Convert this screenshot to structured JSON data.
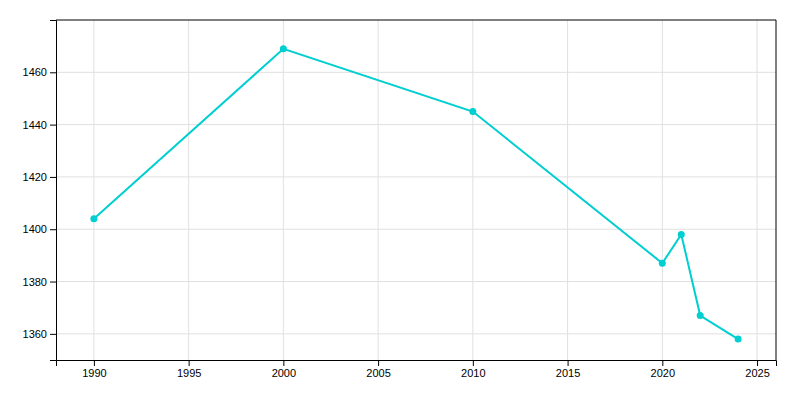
{
  "chart_data": {
    "type": "line",
    "x": [
      1990,
      2000,
      2010,
      2020,
      2021,
      2022,
      2024
    ],
    "values": [
      1404,
      1469,
      1445,
      1387,
      1398,
      1367,
      1358
    ],
    "color": "#00CED1",
    "marker": "circle",
    "xlim": [
      1988,
      2026
    ],
    "ylim": [
      1350,
      1480
    ],
    "xticks": [
      1990,
      1995,
      2000,
      2005,
      2010,
      2015,
      2020,
      2025
    ],
    "yticks": [
      1360,
      1380,
      1400,
      1420,
      1440,
      1460
    ],
    "grid": true
  }
}
